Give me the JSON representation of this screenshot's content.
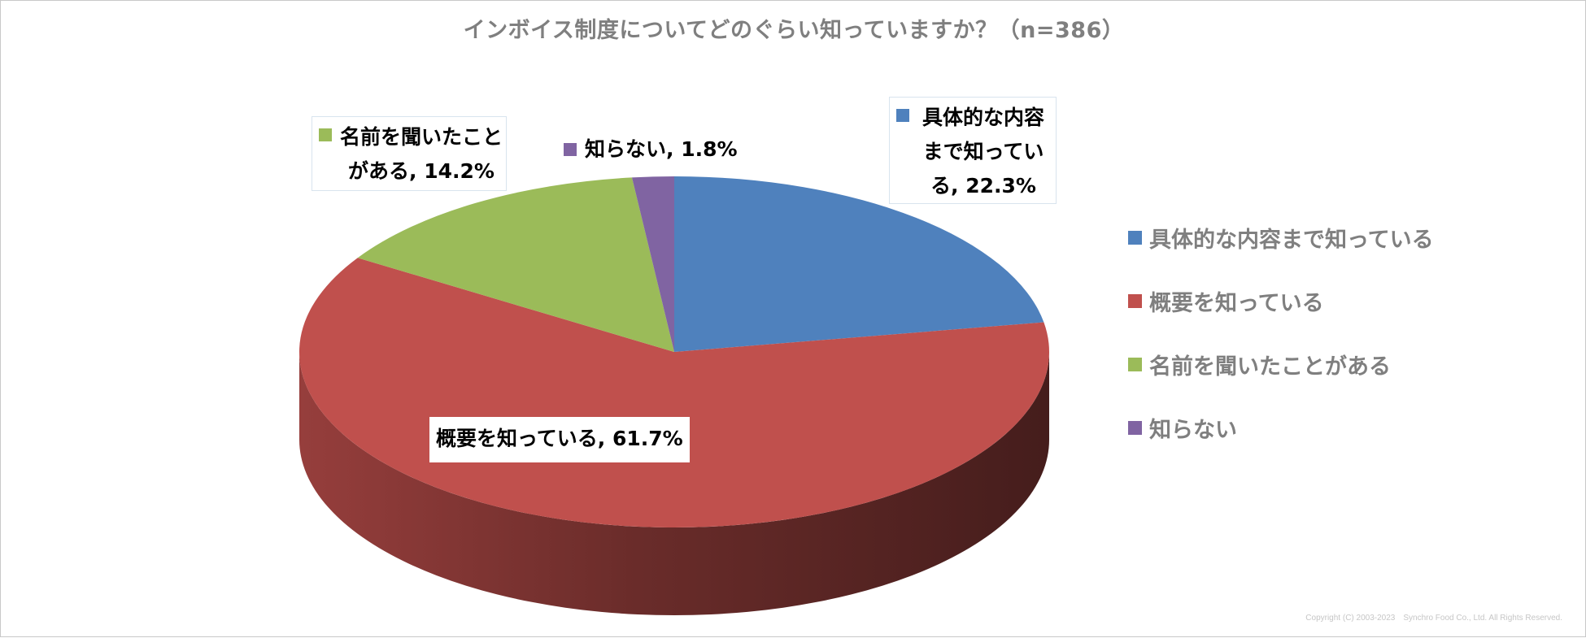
{
  "chart_data": {
    "type": "pie",
    "title": "インボイス制度についてどのぐらい知っていますか？（n=386）",
    "slices": [
      {
        "label": "具体的な内容まで知っている",
        "value": 22.3,
        "color": "#4F81BD",
        "data_label": "具体的な内容まで知っている, 22.3%"
      },
      {
        "label": "概要を知っている",
        "value": 61.7,
        "color": "#C0504D",
        "data_label": "概要を知っている, 61.7%"
      },
      {
        "label": "名前を聞いたことがある",
        "value": 14.2,
        "color": "#9BBB59",
        "data_label": "名前を聞いたことがある, 14.2%"
      },
      {
        "label": "知らない",
        "value": 1.8,
        "color": "#8064A2",
        "data_label": "知らない, 1.8%"
      }
    ],
    "legend_position": "right",
    "style": "3d"
  },
  "footer": {
    "copyright": "Copyright (C) 2003-2023　Synchro Food Co., Ltd. All Rights Reserved."
  }
}
